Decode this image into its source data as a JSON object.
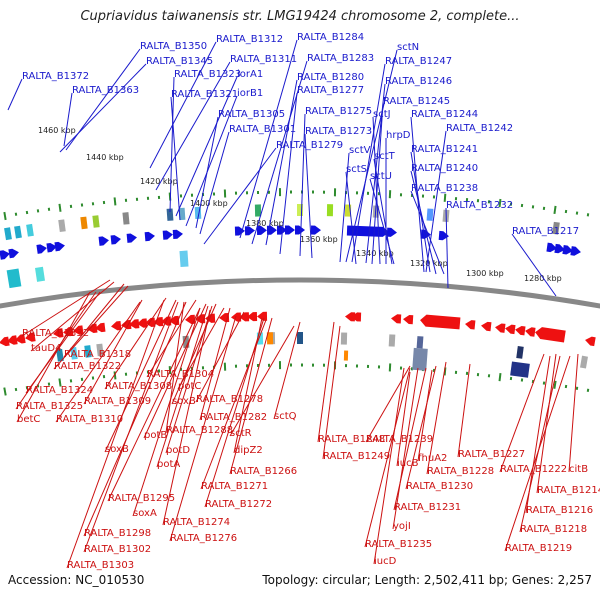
{
  "header": {
    "title": "Cupriavidus taiwanensis str. LMG19424 chromosome 2, complete..."
  },
  "footer": {
    "accession": "Accession: NC_010530",
    "topology": "Topology: circular; Length: 2,502,411 bp; Genes: 2,257"
  },
  "colors": {
    "forward_strand": "#1010dd",
    "reverse_strand": "#ee1111",
    "tick_green": "#2e8b2e",
    "backbone": "#888888",
    "label_blue": "#1a1acc",
    "label_red": "#cc1111"
  },
  "scale_labels": [
    "1460 kbp",
    "1440 kbp",
    "1420 kbp",
    "1400 kbp",
    "1380 kbp",
    "1360 kbp",
    "1340 kbp",
    "1320 kbp",
    "1300 kbp",
    "1280 kbp"
  ],
  "forward_labels": [
    "RALTA_B1350",
    "RALTA_B1312",
    "RALTA_B1284",
    "sctN",
    "RALTA_B1345",
    "RALTA_B1311",
    "RALTA_B1283",
    "RALTA_B1247",
    "RALTA_B1372",
    "RALTA_B1323",
    "iorA1",
    "RALTA_B1280",
    "RALTA_B1246",
    "RALTA_B1363",
    "RALTA_B1321",
    "iorB1",
    "RALTA_B1277",
    "RALTA_B1245",
    "RALTA_B1305",
    "RALTA_B1275",
    "sctJ",
    "RALTA_B1244",
    "RALTA_B1301",
    "RALTA_B1273",
    "hrpD",
    "RALTA_B1242",
    "RALTA_B1279",
    "sctV",
    "sctT",
    "RALTA_B1241",
    "sctS",
    "sctU",
    "RALTA_B1240",
    "RALTA_B1238",
    "RALTA_B1232",
    "RALTA_B1217"
  ],
  "reverse_labels": [
    "RALTA_B1332",
    "tauD4",
    "RALTA_B1318",
    "RALTA_B1322",
    "RALTA_B1304",
    "RALTA_B1324",
    "RALTA_B1308",
    "potC",
    "RALTA_B1325",
    "RALTA_B1309",
    "soxB",
    "RALTA_B1278",
    "betC",
    "RALTA_B1310",
    "RALTA_B1282",
    "sctQ",
    "RALTA_B1288",
    "potB",
    "soxB",
    "potD",
    "sctR",
    "RALTA_B1248",
    "RALTA_B1239",
    "dipZ2",
    "RALTA_B1249",
    "potA",
    "iucB",
    "fhuA2",
    "RALTA_B1227",
    "RALTA_B1266",
    "RALTA_B1228",
    "RALTA_B1222",
    "citB",
    "RALTA_B1295",
    "RALTA_B1271",
    "RALTA_B1230",
    "RALTA_B1214",
    "soxA",
    "RALTA_B1272",
    "RALTA_B1231",
    "RALTA_B1216",
    "RALTA_B1274",
    "yojI",
    "RALTA_B1298",
    "RALTA_B1276",
    "RALTA_B1218",
    "RALTA_B1235",
    "RALTA_B1302",
    "RALTA_B1219",
    "iucD",
    "RALTA_B1303"
  ]
}
